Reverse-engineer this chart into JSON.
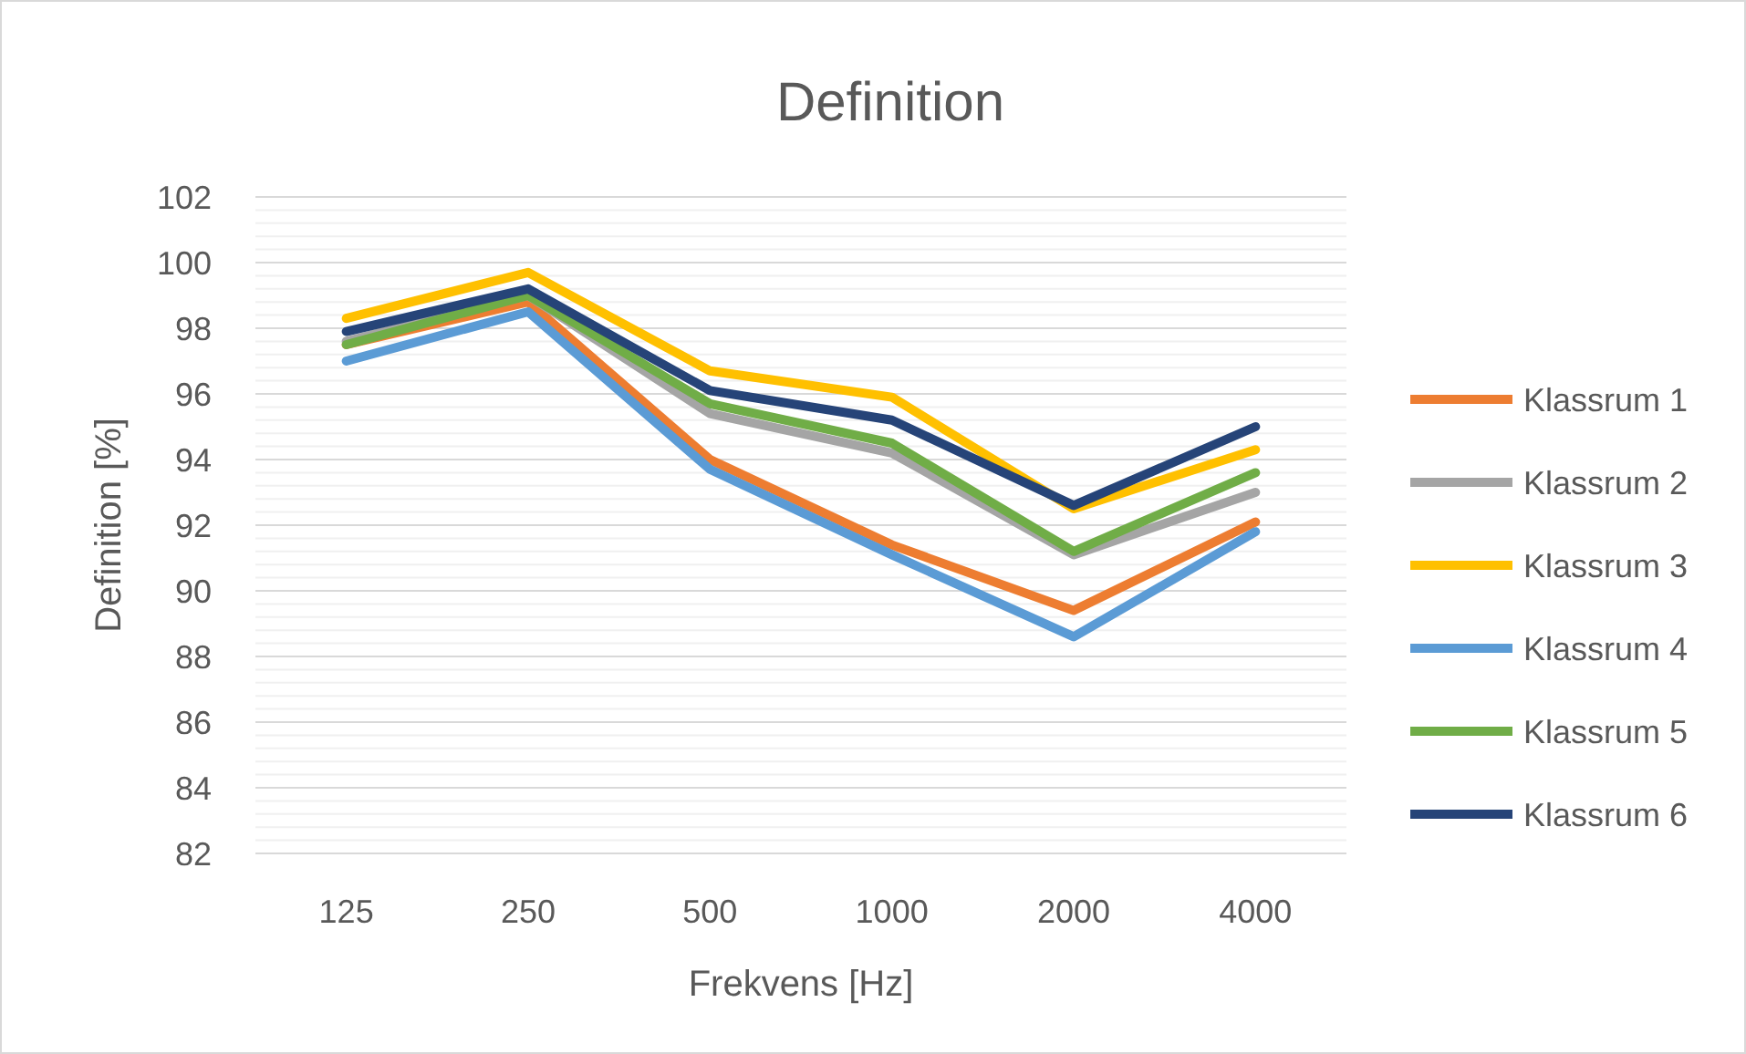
{
  "chart_data": {
    "type": "line",
    "title": "Definition",
    "xlabel": "Frekvens [Hz]",
    "ylabel": "Definition [%]",
    "categories": [
      "125",
      "250",
      "500",
      "1000",
      "2000",
      "4000"
    ],
    "series": [
      {
        "name": "Klassrum 1",
        "color": "#ed7d31",
        "values": [
          97.5,
          98.8,
          94.0,
          91.4,
          89.4,
          92.1
        ]
      },
      {
        "name": "Klassrum 2",
        "color": "#a5a5a5",
        "values": [
          97.6,
          99.0,
          95.4,
          94.2,
          91.1,
          93.0
        ]
      },
      {
        "name": "Klassrum 3",
        "color": "#ffc000",
        "values": [
          98.3,
          99.7,
          96.7,
          95.9,
          92.5,
          94.3
        ]
      },
      {
        "name": "Klassrum 4",
        "color": "#5b9bd5",
        "values": [
          97.0,
          98.5,
          93.7,
          91.1,
          88.6,
          91.8
        ]
      },
      {
        "name": "Klassrum 5",
        "color": "#70ad47",
        "values": [
          97.5,
          99.0,
          95.7,
          94.5,
          91.2,
          93.6
        ]
      },
      {
        "name": "Klassrum 6",
        "color": "#264478",
        "values": [
          97.9,
          99.2,
          96.1,
          95.2,
          92.6,
          95.0
        ]
      }
    ],
    "ylim": [
      82,
      102
    ],
    "yticks": [
      82,
      84,
      86,
      88,
      90,
      92,
      94,
      96,
      98,
      100,
      102
    ],
    "grid": "y",
    "legend": "right",
    "marker": "none",
    "line_style": "solid"
  }
}
